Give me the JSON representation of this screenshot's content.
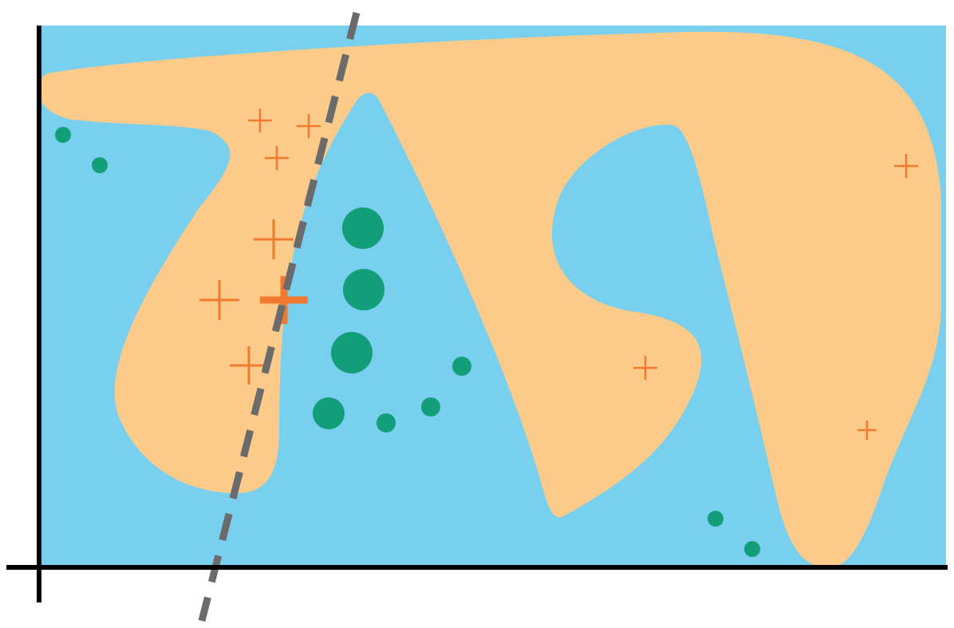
{
  "colors": {
    "background_region": "#79cfee",
    "decision_region": "#fccb8a",
    "positive_marker": "#f27a2e",
    "negative_marker": "#139e7a",
    "linear_boundary": "#6b6b6b",
    "axes": "#000000"
  },
  "figure": {
    "regions": [
      "blue-background",
      "orange-decision-region"
    ],
    "boundary_style": "dashed straight line",
    "marker_shapes": {
      "positive": "cross",
      "negative": "circle"
    }
  }
}
